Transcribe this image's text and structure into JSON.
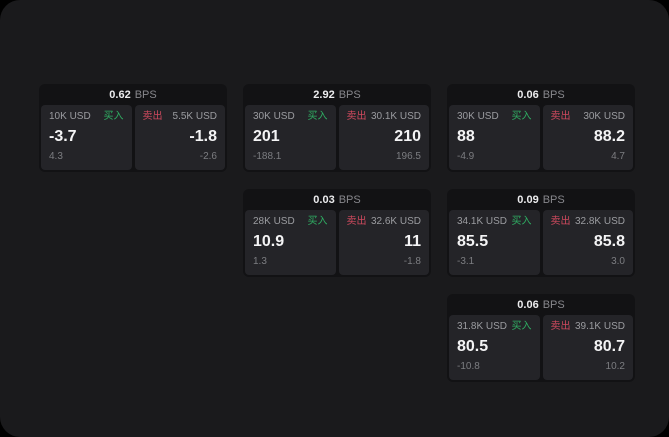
{
  "labels": {
    "bps_unit": "BPS",
    "buy": "买入",
    "sell": "卖出"
  },
  "colors": {
    "page_bg": "#1a1a1c",
    "card_bg": "#121214",
    "subcard_bg": "#242428",
    "buy_green": "#2faf63",
    "sell_red": "#d04a5e"
  },
  "cards": [
    {
      "bps": "0.62",
      "buy": {
        "amount": "10K USD",
        "price": "-3.7",
        "delta": "4.3"
      },
      "sell": {
        "amount": "5.5K USD",
        "price": "-1.8",
        "delta": "-2.6"
      }
    },
    {
      "bps": "2.92",
      "buy": {
        "amount": "30K USD",
        "price": "201",
        "delta": "-188.1"
      },
      "sell": {
        "amount": "30.1K USD",
        "price": "210",
        "delta": "196.5"
      }
    },
    {
      "bps": "0.06",
      "buy": {
        "amount": "30K USD",
        "price": "88",
        "delta": "-4.9"
      },
      "sell": {
        "amount": "30K USD",
        "price": "88.2",
        "delta": "4.7"
      }
    },
    {
      "bps": "0.03",
      "buy": {
        "amount": "28K USD",
        "price": "10.9",
        "delta": "1.3"
      },
      "sell": {
        "amount": "32.6K USD",
        "price": "11",
        "delta": "-1.8"
      }
    },
    {
      "bps": "0.09",
      "buy": {
        "amount": "34.1K USD",
        "price": "85.5",
        "delta": "-3.1"
      },
      "sell": {
        "amount": "32.8K USD",
        "price": "85.8",
        "delta": "3.0"
      }
    },
    {
      "bps": "0.06",
      "buy": {
        "amount": "31.8K USD",
        "price": "80.5",
        "delta": "-10.8"
      },
      "sell": {
        "amount": "39.1K USD",
        "price": "80.7",
        "delta": "10.2"
      }
    }
  ]
}
